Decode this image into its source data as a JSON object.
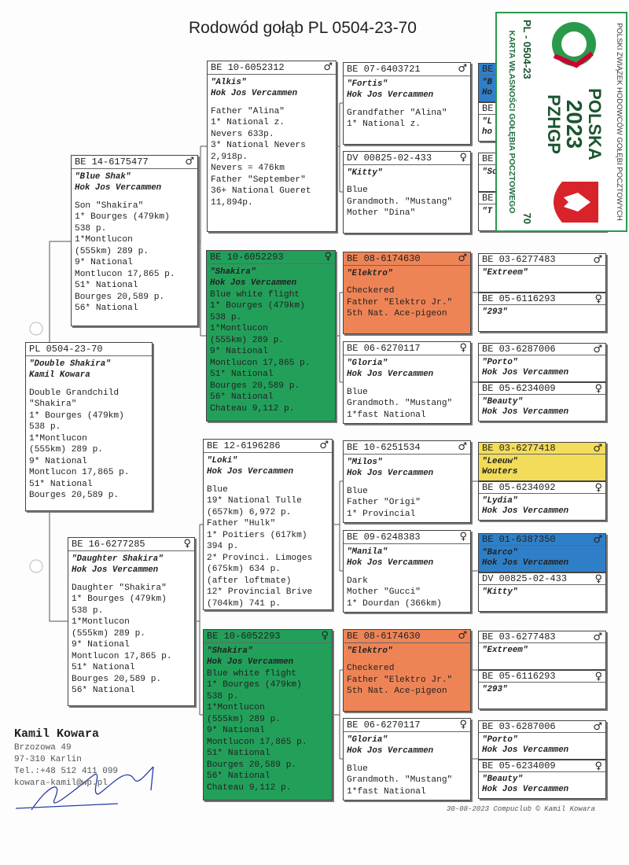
{
  "title": "Rodowód gołąb PL  0504-23-70",
  "ring_card": {
    "union": "POLSKI ZWIĄZEK HODOWCÓW GOŁĘBI POCZTOWYCH",
    "country": "POLSKA",
    "year": "2023",
    "org": "PZHGP",
    "ring": "PL - 0504-23",
    "number": "70",
    "card_title": "KARTA WŁASNOŚCI GOŁĘBIA POCZTOWEGO"
  },
  "birds": [
    {
      "ring": "PL  0504-23-70",
      "sex": "",
      "name": "\"Double Shakira\"",
      "owner": "Kamil Kowara",
      "lines": [
        "Double Grandchild",
        "\"Shakira\"",
        "1* Bourges (479km)",
        "538 p.",
        "1*Montlucon",
        "(555km) 289 p.",
        "9* National",
        "Montlucon 17,865 p.",
        "51* National",
        "Bourges 20,589 p."
      ]
    },
    {
      "ring": "BE  14-6175477",
      "sex": "♂",
      "name": "\"Blue Shak\"",
      "owner": "Hok Jos Vercammen",
      "lines": [
        "Son \"Shakira\"",
        "1* Bourges (479km)",
        "538 p.",
        "1*Montlucon",
        "(555km) 289 p.",
        "9* National",
        "Montlucon 17,865 p.",
        "51* National",
        "Bourges 20,589 p.",
        "56* National"
      ]
    },
    {
      "ring": "BE  16-6277285",
      "sex": "♀",
      "name": "\"Daughter Shakira\"",
      "owner": "Hok Jos Vercammen",
      "lines": [
        "Daughter \"Shakira\"",
        "1* Bourges (479km)",
        "538 p.",
        "1*Montlucon",
        "(555km) 289 p.",
        "9* National",
        "Montlucon 17,865 p.",
        "51* National",
        "Bourges 20,589 p.",
        "56* National"
      ]
    },
    {
      "ring": "BE  10-6052312",
      "sex": "♂",
      "name": "\"Alkis\"",
      "owner": "Hok Jos Vercammen",
      "lines": [
        "Father \"Alina\"",
        "1* National z.",
        "Nevers 633p.",
        "3* National Nevers",
        "2,918p.",
        "Nevers = 476km",
        "Father \"September\"",
        "36+ National Gueret",
        "11,894p."
      ]
    },
    {
      "ring": "BE  10-6052293",
      "sex": "♀",
      "name": "\"Shakira\"",
      "owner": "Hok Jos Vercammen",
      "color": "#22a05a",
      "lines": [
        "Blue white flight",
        "1* Bourges (479km)",
        "538 p.",
        "1*Montlucon",
        "(555km) 289 p.",
        "9* National",
        "Montlucon 17,865 p.",
        "51* National",
        "Bourges 20,589 p.",
        "56* National",
        "Chateau 9,112 p."
      ]
    },
    {
      "ring": "BE  12-6196286",
      "sex": "♂",
      "name": "\"Loki\"",
      "owner": "Hok Jos Vercammen",
      "lines": [
        "Blue",
        "19* National Tulle",
        "(657km) 6,972 p.",
        "Father \"Hulk\"",
        "1* Poitiers (617km)",
        "394 p.",
        "2* Provinci. Limoges",
        "(675km) 634 p.",
        "(after loftmate)",
        "12* Provincial Brive",
        "(704km) 741 p."
      ]
    },
    {
      "ring": "BE  10-6052293",
      "sex": "♀",
      "name": "\"Shakira\"",
      "owner": "Hok Jos Vercammen",
      "color": "#22a05a",
      "lines": [
        "Blue white flight",
        "1* Bourges (479km)",
        "538 p.",
        "1*Montlucon",
        "(555km) 289 p.",
        "9* National",
        "Montlucon 17,865 p.",
        "51* National",
        "Bourges 20,589 p.",
        "56* National",
        "Chateau 9,112 p."
      ]
    },
    {
      "ring": "BE  07-6403721",
      "sex": "♂",
      "name": "\"Fortis\"",
      "owner": "Hok Jos Vercammen",
      "lines": [
        "Grandfather \"Alina\"",
        "1* National z."
      ]
    },
    {
      "ring": "DV  00825-02-433",
      "sex": "♀",
      "name": "\"Kitty\"",
      "owner": "",
      "lines": [
        "Blue",
        "Grandmoth. \"Mustang\"",
        "Mother \"Dina\""
      ]
    },
    {
      "ring": "BE  08-6174630",
      "sex": "♂",
      "name": "\"Elektro\"",
      "owner": "",
      "color": "#ee8456",
      "lines": [
        "Checkered",
        "Father \"Elektro Jr.\"",
        "5th Nat. Ace-pigeon"
      ]
    },
    {
      "ring": "BE  06-6270117",
      "sex": "♀",
      "name": "\"Gloria\"",
      "owner": "Hok Jos Vercammen",
      "lines": [
        "Blue",
        "Grandmoth. \"Mustang\"",
        "1*fast National"
      ]
    },
    {
      "ring": "BE  10-6251534",
      "sex": "♂",
      "name": "\"Milos\"",
      "owner": "Hok Jos Vercammen",
      "lines": [
        "Blue",
        "Father \"Origi\"",
        "1* Provincial"
      ]
    },
    {
      "ring": "BE  09-6248383",
      "sex": "♀",
      "name": "\"Manila\"",
      "owner": "Hok Jos Vercammen",
      "lines": [
        "Dark",
        "Mother \"Gucci\"",
        "1* Dourdan (366km)"
      ]
    },
    {
      "ring": "BE  08-6174630",
      "sex": "♂",
      "name": "\"Elektro\"",
      "owner": "",
      "color": "#ee8456",
      "lines": [
        "Checkered",
        "Father \"Elektro Jr.\"",
        "5th Nat. Ace-pigeon"
      ]
    },
    {
      "ring": "BE  06-6270117",
      "sex": "♀",
      "name": "\"Gloria\"",
      "owner": "Hok Jos Vercammen",
      "lines": [
        "Blue",
        "Grandmoth. \"Mustang\"",
        "1*fast National"
      ]
    },
    {
      "ring": "BE",
      "sex": "",
      "name": "\"B",
      "owner": "Ho",
      "color": "#2f7fc8"
    },
    {
      "ring": "BE",
      "sex": "",
      "name": "\"L",
      "owner": "ho"
    },
    {
      "ring": "BE",
      "sex": "",
      "name": "\"Sc",
      "owner": ""
    },
    {
      "ring": "BE",
      "sex": "",
      "name": "\"T",
      "owner": ""
    },
    {
      "ring": "BE  03-6277483",
      "sex": "♂",
      "name": "\"Extreem\"",
      "owner": ""
    },
    {
      "ring": "BE  05-6116293",
      "sex": "♀",
      "name": "\"293\"",
      "owner": ""
    },
    {
      "ring": "BE  03-6287006",
      "sex": "♂",
      "name": "\"Porto\"",
      "owner": "Hok Jos Vercammen"
    },
    {
      "ring": "BE  05-6234009",
      "sex": "♀",
      "name": "\"Beauty\"",
      "owner": "Hok Jos Vercammen"
    },
    {
      "ring": "BE  03-6277418",
      "sex": "♂",
      "name": "\"Leeuw\"",
      "owner": "Wouters",
      "color": "#f2dc5a"
    },
    {
      "ring": "BE  05-6234092",
      "sex": "♀",
      "name": "\"Lydia\"",
      "owner": "Hok Jos Vercammen"
    },
    {
      "ring": "BE  01-6387350",
      "sex": "♂",
      "name": "\"Barco\"",
      "owner": "Hok Jos Vercammen",
      "color": "#2f7fc8"
    },
    {
      "ring": "DV  00825-02-433",
      "sex": "♀",
      "name": "\"Kitty\"",
      "owner": ""
    },
    {
      "ring": "BE  03-6277483",
      "sex": "♂",
      "name": "\"Extreem\"",
      "owner": ""
    },
    {
      "ring": "BE  05-6116293",
      "sex": "♀",
      "name": "\"293\"",
      "owner": ""
    },
    {
      "ring": "BE  03-6287006",
      "sex": "♂",
      "name": "\"Porto\"",
      "owner": "Hok Jos Vercammen"
    },
    {
      "ring": "BE  05-6234009",
      "sex": "♀",
      "name": "\"Beauty\"",
      "owner": "Hok Jos Vercammen"
    }
  ],
  "breeder": {
    "name": "Kamil Kowara",
    "street": "Brzozowa 49",
    "city": "97-310  Karlin",
    "phone": "Tel.:+48 512 411 099",
    "email": "kowara-kamil@wp.pl"
  },
  "footer": "30-08-2023   Compuclub © Kamil Kowara"
}
